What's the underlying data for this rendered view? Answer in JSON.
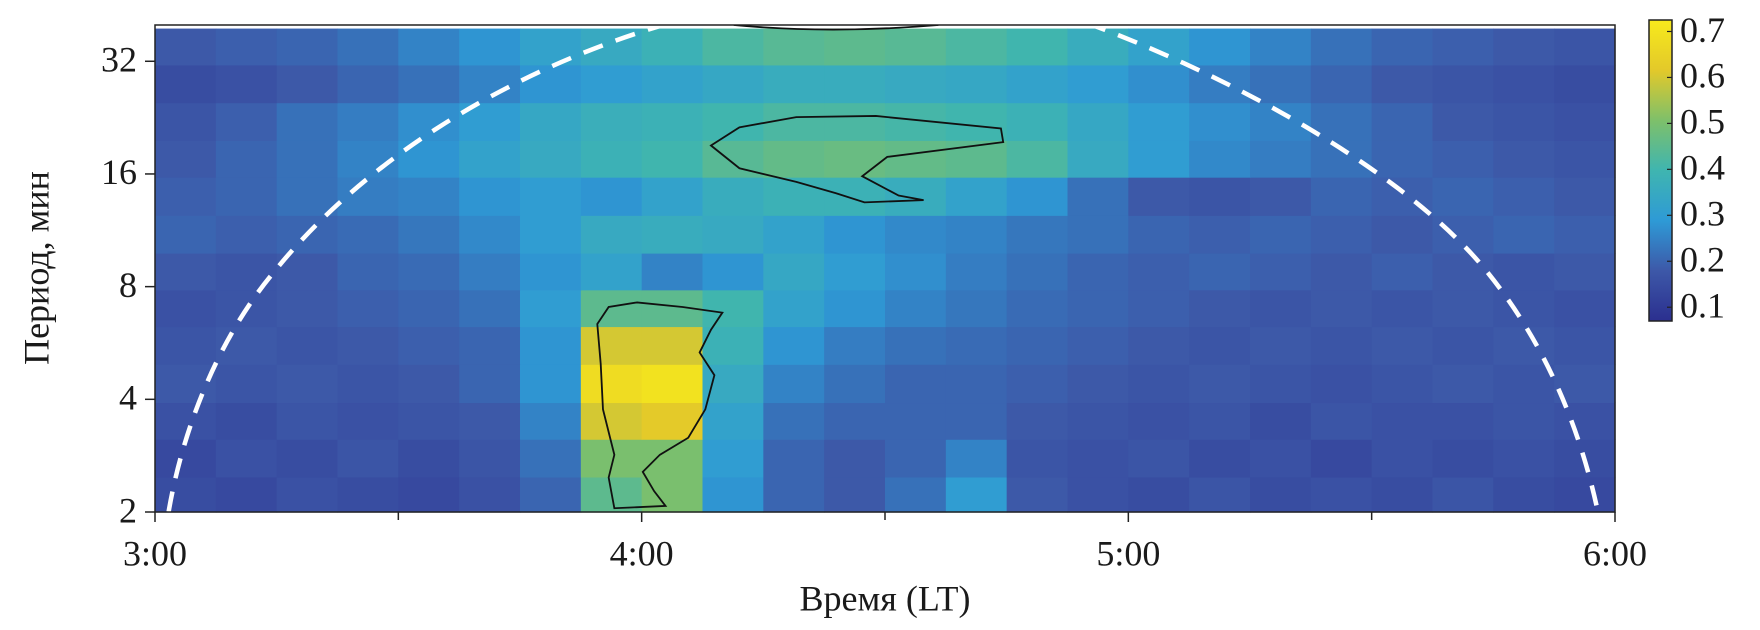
{
  "chart_data": {
    "type": "heatmap",
    "xlabel": "Время (LT)",
    "ylabel": "Период, мин",
    "x": [
      183.75,
      191.25,
      198.75,
      206.25,
      213.75,
      221.25,
      228.75,
      236.25,
      243.75,
      251.25,
      258.75,
      266.25,
      273.75,
      281.25,
      288.75,
      296.25,
      303.75,
      311.25,
      318.75,
      326.25,
      333.75,
      341.25,
      348.75,
      356.25
    ],
    "y": [
      2.2,
      2.8,
      3.5,
      4.4,
      5.6,
      7,
      8.8,
      11,
      14,
      17.6,
      22,
      28,
      35
    ],
    "z": [
      [
        0.15,
        0.14,
        0.16,
        0.15,
        0.14,
        0.16,
        0.2,
        0.45,
        0.5,
        0.28,
        0.2,
        0.18,
        0.22,
        0.3,
        0.18,
        0.16,
        0.15,
        0.17,
        0.15,
        0.16,
        0.15,
        0.17,
        0.15,
        0.14
      ],
      [
        0.14,
        0.16,
        0.15,
        0.17,
        0.15,
        0.17,
        0.22,
        0.5,
        0.5,
        0.3,
        0.2,
        0.18,
        0.2,
        0.25,
        0.17,
        0.16,
        0.17,
        0.15,
        0.16,
        0.14,
        0.16,
        0.15,
        0.16,
        0.15
      ],
      [
        0.16,
        0.15,
        0.17,
        0.16,
        0.17,
        0.18,
        0.25,
        0.6,
        0.62,
        0.32,
        0.22,
        0.2,
        0.2,
        0.2,
        0.18,
        0.17,
        0.16,
        0.17,
        0.15,
        0.17,
        0.16,
        0.16,
        0.17,
        0.16
      ],
      [
        0.18,
        0.17,
        0.18,
        0.17,
        0.18,
        0.2,
        0.28,
        0.68,
        0.7,
        0.35,
        0.25,
        0.22,
        0.2,
        0.2,
        0.19,
        0.18,
        0.17,
        0.18,
        0.17,
        0.16,
        0.17,
        0.18,
        0.17,
        0.18
      ],
      [
        0.17,
        0.18,
        0.17,
        0.18,
        0.19,
        0.2,
        0.28,
        0.6,
        0.6,
        0.38,
        0.28,
        0.24,
        0.22,
        0.21,
        0.2,
        0.19,
        0.18,
        0.17,
        0.18,
        0.17,
        0.18,
        0.17,
        0.18,
        0.17
      ],
      [
        0.16,
        0.17,
        0.18,
        0.19,
        0.2,
        0.22,
        0.3,
        0.45,
        0.45,
        0.4,
        0.32,
        0.28,
        0.25,
        0.23,
        0.21,
        0.2,
        0.19,
        0.18,
        0.17,
        0.18,
        0.17,
        0.18,
        0.17,
        0.16
      ],
      [
        0.18,
        0.17,
        0.18,
        0.2,
        0.21,
        0.24,
        0.28,
        0.32,
        0.25,
        0.28,
        0.34,
        0.3,
        0.27,
        0.24,
        0.22,
        0.2,
        0.19,
        0.2,
        0.19,
        0.18,
        0.19,
        0.18,
        0.17,
        0.18
      ],
      [
        0.2,
        0.19,
        0.2,
        0.21,
        0.23,
        0.26,
        0.3,
        0.35,
        0.36,
        0.35,
        0.32,
        0.28,
        0.26,
        0.25,
        0.23,
        0.22,
        0.2,
        0.19,
        0.2,
        0.19,
        0.18,
        0.19,
        0.2,
        0.19
      ],
      [
        0.19,
        0.2,
        0.22,
        0.24,
        0.25,
        0.28,
        0.3,
        0.28,
        0.32,
        0.36,
        0.38,
        0.38,
        0.36,
        0.32,
        0.28,
        0.22,
        0.18,
        0.17,
        0.18,
        0.2,
        0.19,
        0.2,
        0.19,
        0.18
      ],
      [
        0.18,
        0.2,
        0.22,
        0.25,
        0.28,
        0.32,
        0.35,
        0.38,
        0.4,
        0.44,
        0.46,
        0.47,
        0.46,
        0.45,
        0.42,
        0.35,
        0.3,
        0.26,
        0.24,
        0.22,
        0.2,
        0.19,
        0.18,
        0.17
      ],
      [
        0.17,
        0.19,
        0.22,
        0.24,
        0.27,
        0.3,
        0.34,
        0.37,
        0.38,
        0.4,
        0.42,
        0.42,
        0.41,
        0.4,
        0.38,
        0.34,
        0.3,
        0.27,
        0.25,
        0.22,
        0.2,
        0.18,
        0.17,
        0.16
      ],
      [
        0.15,
        0.16,
        0.18,
        0.2,
        0.22,
        0.25,
        0.28,
        0.3,
        0.32,
        0.34,
        0.36,
        0.36,
        0.35,
        0.34,
        0.32,
        0.3,
        0.27,
        0.24,
        0.22,
        0.2,
        0.18,
        0.17,
        0.16,
        0.15
      ],
      [
        0.18,
        0.19,
        0.2,
        0.22,
        0.25,
        0.28,
        0.32,
        0.35,
        0.38,
        0.42,
        0.44,
        0.45,
        0.44,
        0.42,
        0.4,
        0.36,
        0.32,
        0.28,
        0.25,
        0.22,
        0.2,
        0.19,
        0.18,
        0.17
      ]
    ],
    "xlim": [
      180,
      360
    ],
    "xticks": [
      {
        "value": 180,
        "label": "3:00"
      },
      {
        "value": 240,
        "label": "4:00"
      },
      {
        "value": 300,
        "label": "5:00"
      },
      {
        "value": 360,
        "label": "6:00"
      }
    ],
    "xminor_ticks": [
      210,
      270,
      330
    ],
    "ylim": [
      2,
      40
    ],
    "yscale": "log",
    "yticks": [
      2,
      4,
      8,
      16,
      32
    ],
    "clim": [
      0.07,
      0.725
    ],
    "cticks": [
      0.1,
      0.2,
      0.3,
      0.4,
      0.5,
      0.6,
      0.7
    ],
    "colormap": [
      "#2b2f8f",
      "#3d58a8",
      "#2e9ad6",
      "#3fb5b0",
      "#7ec06a",
      "#e3c92a",
      "#f7ea1c"
    ]
  }
}
